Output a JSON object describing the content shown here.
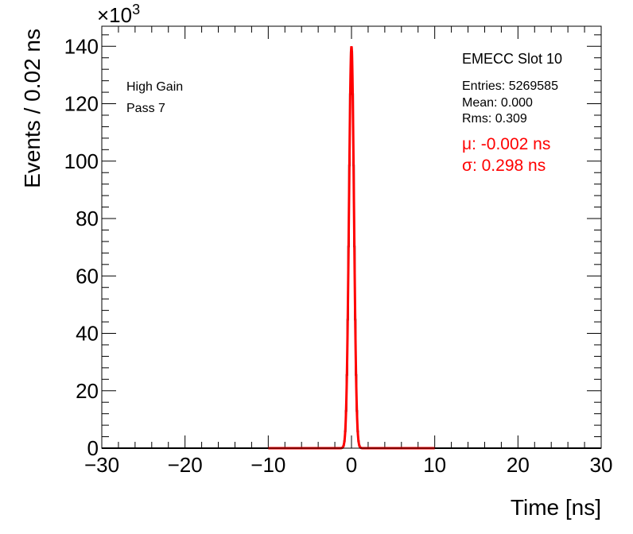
{
  "chart_data": {
    "type": "line",
    "xlabel": "Time [ns]",
    "ylabel": "Events / 0.02 ns",
    "y_scale_label": "×10",
    "y_scale_exponent": "3",
    "xlim": [
      -30,
      30
    ],
    "ylim": [
      0,
      147
    ],
    "x_ticks": [
      -30,
      -20,
      -10,
      0,
      10,
      20,
      30
    ],
    "x_tick_labels": [
      "−30",
      "−20",
      "−10",
      "0",
      "10",
      "20",
      "30"
    ],
    "y_ticks": [
      0,
      20,
      40,
      60,
      80,
      100,
      120,
      140
    ],
    "y_tick_labels": [
      "0",
      "20",
      "40",
      "60",
      "80",
      "100",
      "120",
      "140"
    ],
    "grid": false,
    "series": [
      {
        "kind": "histogram",
        "color": "#000000",
        "mean": 0.0,
        "sigma": 0.298,
        "peak": 140
      },
      {
        "kind": "gaussian-fit",
        "color": "#ff0000",
        "mean": -0.002,
        "sigma": 0.298,
        "peak": 140,
        "range": [
          -10,
          10
        ]
      }
    ],
    "annotations_left": [
      "High Gain",
      "Pass 7"
    ],
    "stats_box": {
      "title": "EMECC Slot 10",
      "lines": [
        "Entries: 5269585",
        "Mean: 0.000",
        "Rms: 0.309"
      ]
    },
    "fit_results": [
      "μ: -0.002 ns",
      "σ: 0.298 ns"
    ],
    "fit_color": "#ff0000"
  }
}
